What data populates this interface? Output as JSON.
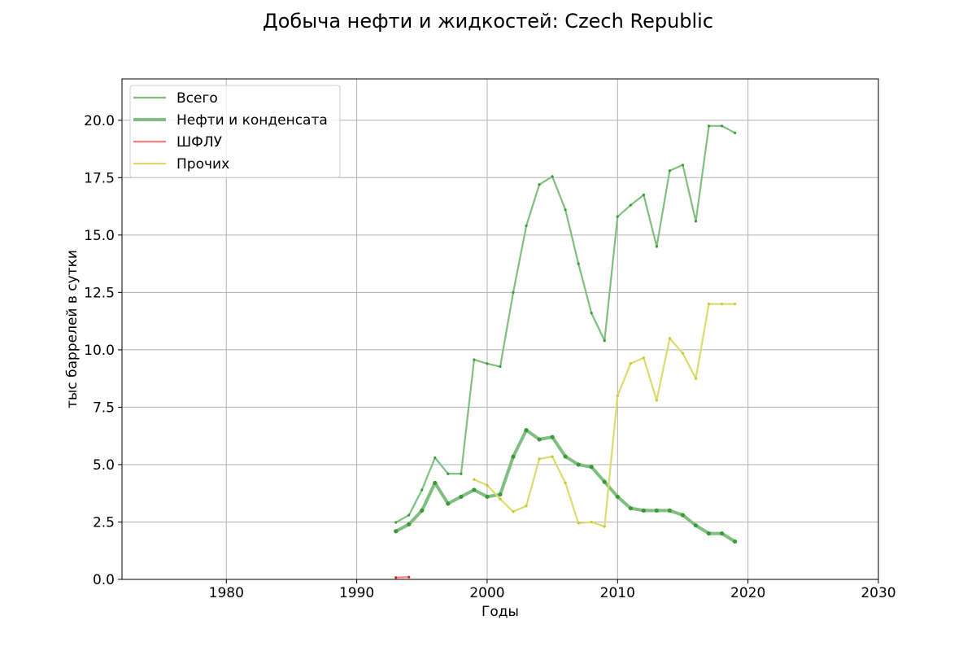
{
  "chart_data": {
    "type": "line",
    "title": "Добыча нефти и жидкостей: Czech Republic",
    "xlabel": "Годы",
    "ylabel": "тыс баррелей в сутки",
    "xlim": [
      1972,
      2030
    ],
    "ylim": [
      0,
      21.8
    ],
    "xticks": [
      1980,
      1990,
      2000,
      2010,
      2020,
      2030
    ],
    "yticks": [
      0.0,
      2.5,
      5.0,
      7.5,
      10.0,
      12.5,
      15.0,
      17.5,
      20.0
    ],
    "ytick_labels": [
      "0.0",
      "2.5",
      "5.0",
      "7.5",
      "10.0",
      "12.5",
      "15.0",
      "17.5",
      "20.0"
    ],
    "grid": true,
    "legend_position": "top-left",
    "series": [
      {
        "name": "Всего",
        "color": "#7fbf7f",
        "marker_color": "#3a9a3a",
        "line_width": 2.2,
        "marker_size": 1.6,
        "points": [
          [
            1993,
            2.48
          ],
          [
            1994,
            2.8
          ],
          [
            1995,
            3.9
          ],
          [
            1996,
            5.3
          ],
          [
            1997,
            4.6
          ],
          [
            1998,
            4.6
          ],
          [
            1999,
            9.57
          ],
          [
            2000,
            9.4
          ],
          [
            2001,
            9.27
          ],
          [
            2002,
            12.5
          ],
          [
            2003,
            15.4
          ],
          [
            2004,
            17.2
          ],
          [
            2005,
            17.55
          ],
          [
            2006,
            16.1
          ],
          [
            2007,
            13.75
          ],
          [
            2008,
            11.6
          ],
          [
            2009,
            10.4
          ],
          [
            2010,
            15.8
          ],
          [
            2011,
            16.3
          ],
          [
            2012,
            16.75
          ],
          [
            2013,
            14.5
          ],
          [
            2014,
            17.8
          ],
          [
            2015,
            18.05
          ],
          [
            2016,
            15.6
          ],
          [
            2017,
            19.75
          ],
          [
            2018,
            19.75
          ],
          [
            2019,
            19.45
          ]
        ]
      },
      {
        "name": "Нефти и конденсата",
        "color": "#7fbf7f",
        "marker_color": "#3a9a3a",
        "line_width": 4,
        "marker_size": 2.6,
        "points": [
          [
            1993,
            2.1
          ],
          [
            1994,
            2.4
          ],
          [
            1995,
            3.0
          ],
          [
            1996,
            4.2
          ],
          [
            1997,
            3.3
          ],
          [
            1998,
            3.6
          ],
          [
            1999,
            3.9
          ],
          [
            2000,
            3.6
          ],
          [
            2001,
            3.7
          ],
          [
            2002,
            5.35
          ],
          [
            2003,
            6.5
          ],
          [
            2004,
            6.1
          ],
          [
            2005,
            6.2
          ],
          [
            2006,
            5.35
          ],
          [
            2007,
            5.0
          ],
          [
            2008,
            4.9
          ],
          [
            2009,
            4.25
          ],
          [
            2010,
            3.6
          ],
          [
            2011,
            3.1
          ],
          [
            2012,
            3.0
          ],
          [
            2013,
            3.0
          ],
          [
            2014,
            3.0
          ],
          [
            2015,
            2.8
          ],
          [
            2016,
            2.35
          ],
          [
            2017,
            2.0
          ],
          [
            2018,
            2.0
          ],
          [
            2019,
            1.65
          ]
        ]
      },
      {
        "name": "ШФЛУ",
        "color": "#ff7f7f",
        "marker_color": "#d62728",
        "line_width": 2.2,
        "marker_size": 1.6,
        "points": [
          [
            1993,
            0.08
          ],
          [
            1994,
            0.1
          ]
        ]
      },
      {
        "name": "Прочих",
        "color": "#dcdc6e",
        "marker_color": "#c8c832",
        "line_width": 2.2,
        "marker_size": 1.6,
        "points": [
          [
            1999,
            4.35
          ],
          [
            2000,
            4.1
          ],
          [
            2001,
            3.5
          ],
          [
            2002,
            2.95
          ],
          [
            2003,
            3.2
          ],
          [
            2004,
            5.25
          ],
          [
            2005,
            5.35
          ],
          [
            2006,
            4.2
          ],
          [
            2007,
            2.45
          ],
          [
            2008,
            2.5
          ],
          [
            2009,
            2.3
          ],
          [
            2010,
            8.0
          ],
          [
            2011,
            9.4
          ],
          [
            2012,
            9.65
          ],
          [
            2013,
            7.8
          ],
          [
            2014,
            10.5
          ],
          [
            2015,
            9.85
          ],
          [
            2016,
            8.75
          ],
          [
            2017,
            12.0
          ],
          [
            2018,
            12.0
          ],
          [
            2019,
            12.0
          ]
        ]
      }
    ]
  }
}
